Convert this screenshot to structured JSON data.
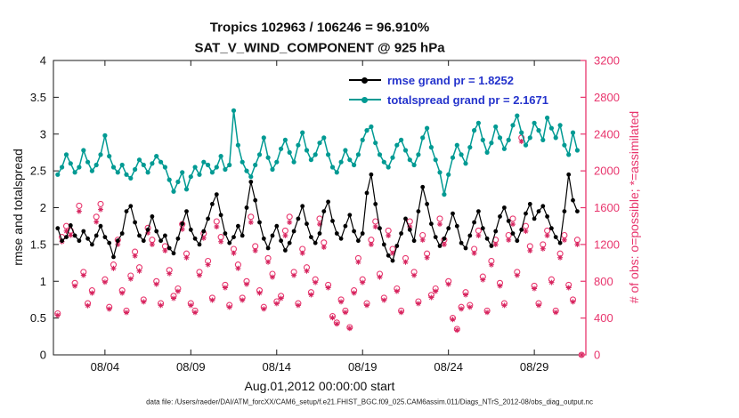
{
  "title": {
    "line1": "Tropics 102963 / 106246 = 96.910%",
    "line2": "SAT_V_WIND_COMPONENT @ 925 hPa"
  },
  "caption": "data file: /Users/raeder/DAI/ATM_forcXX/CAM6_setup/f.e21.FHIST_BGC.f09_025.CAM6assim.011/Diags_NTrS_2012-08/obs_diag_output.nc",
  "chart_data": {
    "type": "line",
    "title": "Tropics 102963 / 106246 = 96.910% | SAT_V_WIND_COMPONENT @ 925 hPa",
    "xlabel": "Aug.01,2012 00:00:00 start",
    "ylabel_left": "rmse and totalspread",
    "ylabel_right": "# of obs: o=possible; *=assimilated",
    "ylim_left": [
      0,
      4
    ],
    "ytick_labels_left": [
      "0",
      "0.5",
      "1",
      "1.5",
      "2",
      "2.5",
      "3",
      "3.5",
      "4"
    ],
    "ylim_right": [
      0,
      3200
    ],
    "ytick_labels_right": [
      "0",
      "400",
      "800",
      "1200",
      "1600",
      "2000",
      "2400",
      "2800",
      "3200"
    ],
    "xlim_days": [
      1,
      32
    ],
    "xticks": [
      {
        "day": 4,
        "label": "08/04"
      },
      {
        "day": 9,
        "label": "08/09"
      },
      {
        "day": 14,
        "label": "08/14"
      },
      {
        "day": 19,
        "label": "08/19"
      },
      {
        "day": 24,
        "label": "08/24"
      },
      {
        "day": 29,
        "label": "08/29"
      }
    ],
    "time_start_day": 1.25,
    "time_step_days": 0.25,
    "legend": [
      {
        "name": "rmse",
        "label": "rmse grand pr = 1.8252",
        "color": "#000000"
      },
      {
        "name": "totalspread",
        "label": "totalspread grand pr = 2.1671",
        "color": "#009a93"
      }
    ],
    "colors": {
      "rmse": "#000000",
      "totalspread": "#009a93",
      "obs_possible": "#e8356d",
      "obs_assimilated": "#d6255f",
      "right_axis": "#e8356d",
      "legend_text": "#2433cc"
    },
    "series": {
      "rmse": [
        1.72,
        1.55,
        1.6,
        1.76,
        1.62,
        1.55,
        1.68,
        1.58,
        1.5,
        1.62,
        1.75,
        1.6,
        1.52,
        1.33,
        1.55,
        1.65,
        1.95,
        2.02,
        1.8,
        1.62,
        1.55,
        1.7,
        1.88,
        1.68,
        1.55,
        1.62,
        1.45,
        1.38,
        1.58,
        1.78,
        1.95,
        1.7,
        1.58,
        1.5,
        1.68,
        1.85,
        2.05,
        2.18,
        1.9,
        1.65,
        1.52,
        1.6,
        1.75,
        1.62,
        2.0,
        2.35,
        2.1,
        1.8,
        1.58,
        1.45,
        1.62,
        1.75,
        1.55,
        1.42,
        1.52,
        1.68,
        1.85,
        2.02,
        1.78,
        1.6,
        1.52,
        1.65,
        1.95,
        2.08,
        1.82,
        1.65,
        1.58,
        1.75,
        1.9,
        1.68,
        1.55,
        1.65,
        2.2,
        2.45,
        2.05,
        1.72,
        1.5,
        1.35,
        1.28,
        1.48,
        1.65,
        1.85,
        1.7,
        1.55,
        1.95,
        2.28,
        2.05,
        1.78,
        1.6,
        1.48,
        1.58,
        1.72,
        1.92,
        1.75,
        1.52,
        1.45,
        1.62,
        1.8,
        1.95,
        1.72,
        1.58,
        1.48,
        1.68,
        1.88,
        2.0,
        1.82,
        1.65,
        1.55,
        1.7,
        1.92,
        2.05,
        1.85,
        1.95,
        2.02,
        1.88,
        1.72,
        1.6,
        1.52,
        1.95,
        2.45,
        2.1,
        1.95,
        null
      ],
      "totalspread": [
        2.45,
        2.55,
        2.72,
        2.6,
        2.48,
        2.55,
        2.78,
        2.62,
        2.5,
        2.58,
        2.72,
        2.98,
        2.7,
        2.55,
        2.48,
        2.58,
        2.45,
        2.4,
        2.52,
        2.65,
        2.58,
        2.48,
        2.6,
        2.7,
        2.62,
        2.55,
        2.38,
        2.22,
        2.35,
        2.48,
        2.25,
        2.42,
        2.55,
        2.45,
        2.62,
        2.58,
        2.48,
        2.55,
        2.7,
        2.52,
        2.58,
        3.32,
        2.85,
        2.62,
        2.5,
        2.42,
        2.58,
        2.72,
        2.95,
        2.68,
        2.52,
        2.62,
        2.8,
        2.92,
        2.75,
        2.62,
        2.85,
        3.02,
        2.78,
        2.65,
        2.72,
        2.88,
        2.95,
        2.72,
        2.55,
        2.48,
        2.62,
        2.78,
        2.65,
        2.58,
        2.72,
        2.92,
        3.05,
        3.1,
        2.88,
        2.72,
        2.62,
        2.55,
        2.68,
        2.85,
        2.92,
        2.78,
        2.65,
        2.58,
        2.72,
        2.95,
        3.08,
        2.82,
        2.65,
        2.48,
        2.18,
        2.45,
        2.68,
        2.85,
        2.72,
        2.6,
        2.82,
        3.05,
        3.15,
        2.92,
        2.75,
        2.88,
        3.1,
        2.95,
        2.8,
        2.92,
        3.12,
        3.25,
        3.02,
        2.85,
        2.95,
        3.15,
        3.05,
        2.92,
        3.22,
        3.08,
        2.95,
        3.12,
        2.85,
        2.72,
        3.02,
        2.78,
        null
      ],
      "obs_possible": [
        450,
        1280,
        1400,
        1350,
        780,
        1620,
        900,
        560,
        700,
        1500,
        1640,
        820,
        520,
        980,
        1250,
        700,
        480,
        860,
        1120,
        950,
        600,
        1380,
        1250,
        800,
        560,
        1180,
        920,
        640,
        720,
        1420,
        1100,
        560,
        480,
        900,
        1320,
        1020,
        620,
        1450,
        1280,
        760,
        540,
        1150,
        980,
        620,
        800,
        1500,
        1180,
        700,
        520,
        1050,
        880,
        580,
        640,
        1350,
        1500,
        900,
        560,
        1150,
        950,
        680,
        820,
        1480,
        1220,
        760,
        420,
        350,
        600,
        480,
        300,
        700,
        1050,
        820,
        560,
        1250,
        1450,
        880,
        620,
        1350,
        1150,
        720,
        480,
        1050,
        1450,
        900,
        580,
        1300,
        1100,
        650,
        720,
        1480,
        1250,
        800,
        400,
        280,
        520,
        680,
        540,
        1150,
        1350,
        850,
        480,
        1020,
        1250,
        780,
        560,
        1300,
        1480,
        900,
        2360,
        1400,
        1180,
        750,
        560,
        1200,
        1350,
        820,
        480,
        1100,
        1300,
        760,
        600,
        1250,
        0
      ],
      "obs_assimilated": [
        430,
        1230,
        1345,
        1300,
        748,
        1560,
        865,
        535,
        672,
        1445,
        1580,
        790,
        498,
        940,
        1200,
        672,
        460,
        826,
        1075,
        912,
        576,
        1325,
        1200,
        768,
        538,
        1132,
        884,
        614,
        690,
        1365,
        1056,
        538,
        460,
        864,
        1268,
        980,
        595,
        1392,
        1230,
        730,
        518,
        1105,
        940,
        595,
        768,
        1440,
        1132,
        672,
        499,
        1008,
        845,
        557,
        614,
        1296,
        1440,
        864,
        538,
        1105,
        912,
        653,
        787,
        1420,
        1170,
        730,
        403,
        336,
        576,
        461,
        288,
        672,
        1008,
        787,
        538,
        1200,
        1392,
        845,
        595,
        1296,
        1104,
        691,
        461,
        1008,
        1392,
        864,
        557,
        1248,
        1056,
        624,
        691,
        1420,
        1200,
        768,
        384,
        269,
        499,
        653,
        518,
        1104,
        1296,
        816,
        461,
        979,
        1200,
        749,
        538,
        1248,
        1420,
        864,
        2320,
        1344,
        1132,
        720,
        538,
        1152,
        1296,
        787,
        461,
        1056,
        1248,
        730,
        576,
        1200,
        0
      ]
    }
  }
}
